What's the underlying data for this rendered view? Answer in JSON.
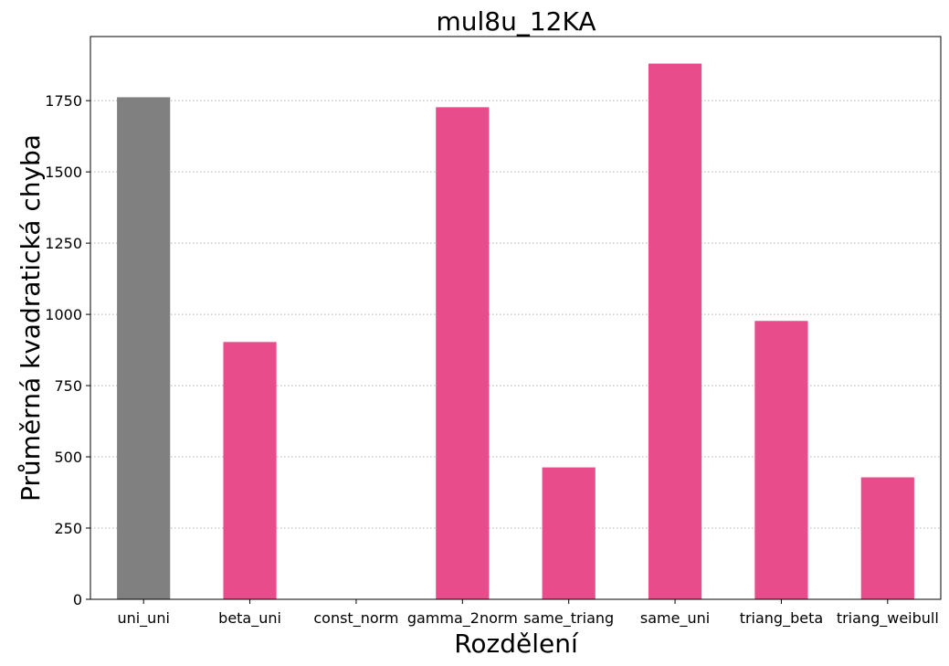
{
  "chart_data": {
    "type": "bar",
    "title": "mul8u_12KA",
    "xlabel": "Rozdělení",
    "ylabel": "Průměrná kvadratická chyba",
    "categories": [
      "uni_uni",
      "beta_uni",
      "const_norm",
      "gamma_2norm",
      "same_triang",
      "same_uni",
      "triang_beta",
      "triang_weibull"
    ],
    "values": [
      1762,
      903,
      0,
      1727,
      463,
      1880,
      977,
      428
    ],
    "bar_colors": [
      "#808080",
      "#e84c8a",
      "#e84c8a",
      "#e84c8a",
      "#e84c8a",
      "#e84c8a",
      "#e84c8a",
      "#e84c8a"
    ],
    "ylim": [
      0,
      1975
    ],
    "yticks": [
      0,
      250,
      500,
      750,
      1000,
      1250,
      1500,
      1750
    ],
    "grid": {
      "axis": "y",
      "style": "dotted",
      "color": "#b0b0b0"
    }
  }
}
